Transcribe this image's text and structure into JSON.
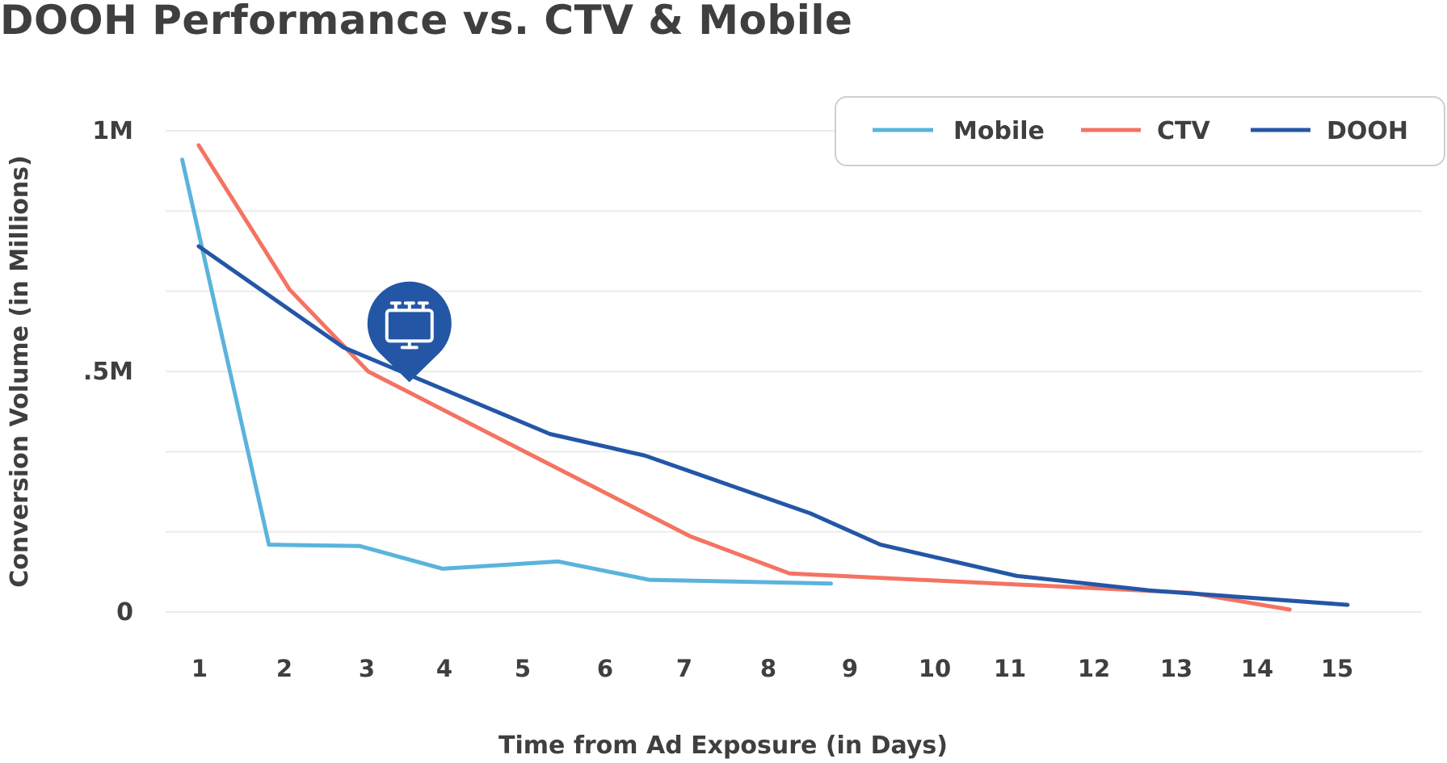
{
  "chart_data": {
    "type": "line",
    "title": "DOOH Performance vs. CTV & Mobile",
    "xlabel": "Time from Ad Exposure (in Days)",
    "ylabel": "Conversion Volume (in Millions)",
    "x_ticks": [
      "1",
      "2",
      "3",
      "4",
      "5",
      "6",
      "7",
      "8",
      "9",
      "10",
      "11",
      "12",
      "13",
      "14",
      "15"
    ],
    "y_ticks": [
      {
        "value": 0,
        "label": "0"
      },
      {
        "value": 0.5,
        "label": ".5M"
      },
      {
        "value": 1,
        "label": "1M"
      }
    ],
    "ylim": [
      0,
      1
    ],
    "xlim": [
      0.6,
      15.8
    ],
    "grid": true,
    "legend_position": "top-right",
    "series": [
      {
        "name": "Mobile",
        "color": "#5ab4dc",
        "x": [
          0.8,
          1.85,
          2.95,
          3.95,
          5.35,
          6.45,
          8.65
        ],
        "y": [
          0.94,
          0.14,
          0.137,
          0.09,
          0.105,
          0.067,
          0.059
        ]
      },
      {
        "name": "CTV",
        "color": "#f47362",
        "x": [
          1.0,
          2.1,
          3.05,
          6.95,
          8.15,
          13.0,
          14.2
        ],
        "y": [
          0.97,
          0.67,
          0.5,
          0.157,
          0.08,
          0.04,
          0.005
        ]
      },
      {
        "name": "DOOH",
        "color": "#2456a6",
        "x": [
          1.0,
          2.75,
          5.25,
          6.4,
          8.4,
          9.25,
          10.9,
          12.5,
          14.9
        ],
        "y": [
          0.76,
          0.55,
          0.37,
          0.325,
          0.205,
          0.14,
          0.075,
          0.045,
          0.015
        ]
      }
    ],
    "annotation": {
      "icon": "billboard-pin-icon",
      "color": "#2456a6",
      "x": 3.55,
      "y": 0.6
    }
  }
}
